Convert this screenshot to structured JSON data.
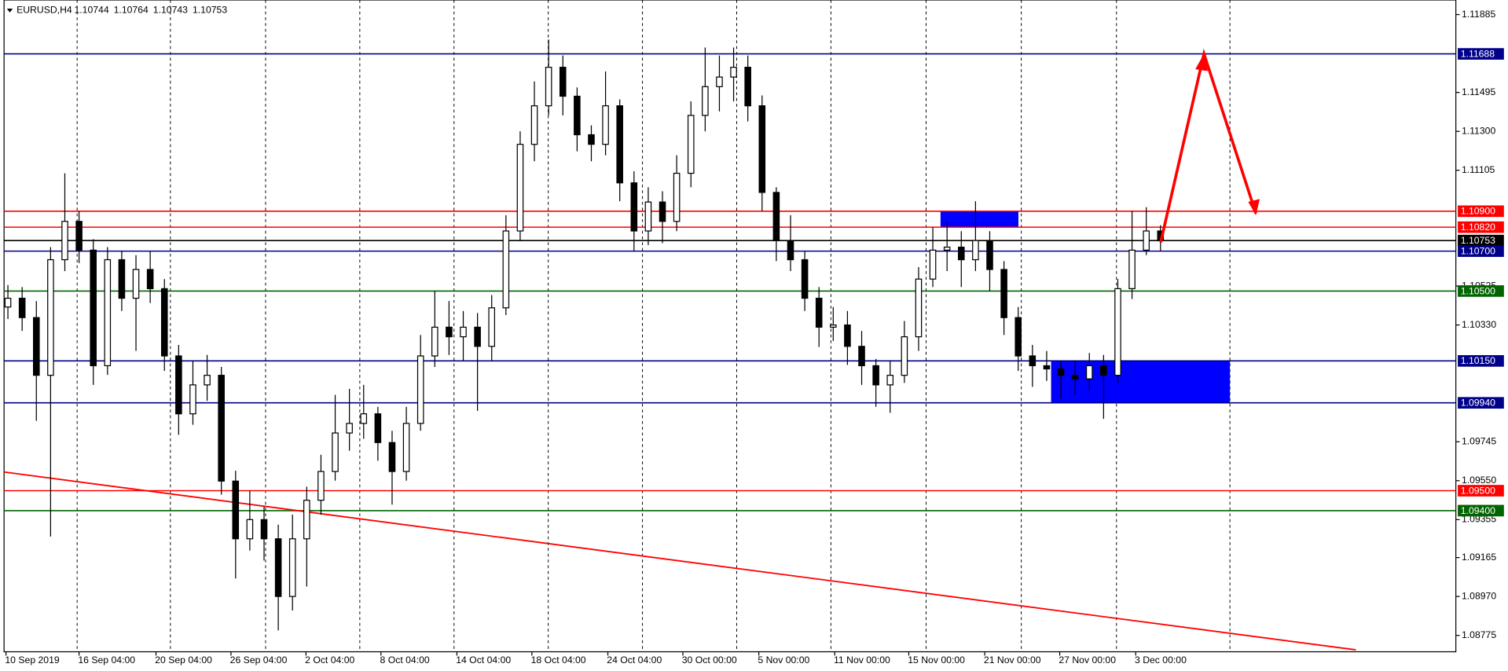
{
  "chart_data": {
    "type": "candlestick",
    "header": {
      "symbol": "EURUSD,H4",
      "open": 1.10744,
      "high": 1.10764,
      "low": 1.10743,
      "close": 1.10753
    },
    "ylim": [
      1.08693,
      1.11958
    ],
    "yticks": [
      {
        "value": 1.11885,
        "label": "1.11885"
      },
      {
        "value": 1.11495,
        "label": "1.11495"
      },
      {
        "value": 1.113,
        "label": "1.11300"
      },
      {
        "value": 1.11105,
        "label": "1.11105"
      },
      {
        "value": 1.10525,
        "label": "1.10525"
      },
      {
        "value": 1.1033,
        "label": "1.10330"
      },
      {
        "value": 1.09745,
        "label": "1.09745"
      },
      {
        "value": 1.0955,
        "label": "1.09550"
      },
      {
        "value": 1.09355,
        "label": "1.09355"
      },
      {
        "value": 1.09165,
        "label": "1.09165"
      },
      {
        "value": 1.0897,
        "label": "1.08970"
      },
      {
        "value": 1.08775,
        "label": "1.08775"
      }
    ],
    "categories": [
      "10 Sep 2019",
      "16 Sep 04:00",
      "20 Sep 04:00",
      "26 Sep 04:00",
      "2 Oct 04:00",
      "8 Oct 04:00",
      "14 Oct 04:00",
      "18 Oct 04:00",
      "24 Oct 04:00",
      "30 Oct 00:00",
      "5 Nov 00:00",
      "11 Nov 00:00",
      "15 Nov 00:00",
      "21 Nov 00:00",
      "27 Nov 00:00",
      "3 Dec 00:00"
    ],
    "levels": [
      {
        "value": 1.11688,
        "label": "1.11688",
        "color": "#00008b"
      },
      {
        "value": 1.109,
        "label": "1.10900",
        "color": "#ff0000"
      },
      {
        "value": 1.1082,
        "label": "1.10820",
        "color": "#ff0000"
      },
      {
        "value": 1.10753,
        "label": "1.10753",
        "color": "#000000"
      },
      {
        "value": 1.107,
        "label": "1.10700",
        "color": "#00008b"
      },
      {
        "value": 1.105,
        "label": "1.10500",
        "color": "#006400"
      },
      {
        "value": 1.1015,
        "label": "1.10150",
        "color": "#00008b"
      },
      {
        "value": 1.0994,
        "label": "1.09940",
        "color": "#00008b"
      },
      {
        "value": 1.095,
        "label": "1.09500",
        "color": "#ff0000"
      },
      {
        "value": 1.094,
        "label": "1.09400",
        "color": "#006400"
      }
    ],
    "zones": [
      {
        "top": 1.109,
        "bottom": 1.1082,
        "color": "#0000ff"
      },
      {
        "top": 1.1015,
        "bottom": 1.0994,
        "color": "#0000ff"
      }
    ],
    "color": "#000000",
    "open": [
      1.1042,
      1.10464,
      1.10367,
      1.10078,
      1.10657,
      1.10849,
      1.10705,
      1.10126,
      1.10657,
      1.10464,
      1.10608,
      1.10512,
      1.10175,
      1.09885,
      1.1003,
      1.10078,
      1.09548,
      1.09259,
      1.09355,
      1.09259,
      1.0897,
      1.09259,
      1.09452,
      1.09596,
      1.09789,
      1.09837,
      1.09885,
      1.09741,
      1.09596,
      1.09837,
      1.10175,
      1.10319,
      1.10271,
      1.10319,
      1.10223,
      1.10416,
      1.10801,
      1.11235,
      1.11428,
      1.11621,
      1.11476,
      1.11283,
      1.11235,
      1.11428,
      1.11042,
      1.10801,
      1.10946,
      1.10849,
      1.1109,
      1.1138,
      1.11524,
      1.11572,
      1.11621,
      1.11428,
      1.10994,
      1.10753,
      1.10657,
      1.10464,
      1.10319,
      1.1033,
      1.10223,
      1.10126,
      1.1003,
      1.10078,
      1.10271,
      1.1056,
      1.10705,
      1.1072,
      1.10657,
      1.10753,
      1.10608,
      1.10367,
      1.10175,
      1.10126,
      1.1011,
      1.10078,
      1.1006,
      1.10126,
      1.10078,
      1.10512,
      1.10705,
      1.10801
    ],
    "high": [
      1.1053,
      1.1052,
      1.1045,
      1.1072,
      1.1109,
      1.109,
      1.1076,
      1.1072,
      1.107,
      1.1068,
      1.107,
      1.1056,
      1.1023,
      1.1015,
      1.1018,
      1.1012,
      1.096,
      1.095,
      1.0942,
      1.0933,
      1.0938,
      1.0952,
      1.0968,
      1.0998,
      1.1001,
      1.1003,
      1.0992,
      1.098,
      1.0992,
      1.1028,
      1.105,
      1.1045,
      1.104,
      1.1039,
      1.1048,
      1.1088,
      1.113,
      1.1155,
      1.1176,
      1.1168,
      1.1152,
      1.1133,
      1.116,
      1.1146,
      1.111,
      1.1102,
      1.11,
      1.1118,
      1.1145,
      1.1172,
      1.1168,
      1.1172,
      1.1168,
      1.1148,
      1.1102,
      1.1088,
      1.107,
      1.1052,
      1.1042,
      1.104,
      1.103,
      1.1016,
      1.1015,
      1.1035,
      1.1062,
      1.1082,
      1.1085,
      1.108,
      1.1095,
      1.108,
      1.1065,
      1.1042,
      1.1023,
      1.102,
      1.1015,
      1.1015,
      1.1019,
      1.1018,
      1.1056,
      1.109,
      1.1092,
      1.1083
    ],
    "low": [
      1.1036,
      1.103,
      1.0985,
      1.0927,
      1.106,
      1.1064,
      1.1003,
      1.1008,
      1.104,
      1.102,
      1.1044,
      1.101,
      1.0978,
      1.0983,
      1.0995,
      1.0948,
      1.0906,
      1.092,
      1.0915,
      1.088,
      1.089,
      1.0902,
      1.0938,
      1.0955,
      1.097,
      1.0976,
      1.0965,
      1.0943,
      1.0955,
      1.098,
      1.1012,
      1.1018,
      1.1015,
      1.099,
      1.1015,
      1.1038,
      1.1075,
      1.1115,
      1.1138,
      1.1138,
      1.112,
      1.1115,
      1.1118,
      1.1095,
      1.107,
      1.1073,
      1.1074,
      1.108,
      1.1102,
      1.113,
      1.114,
      1.1145,
      1.1135,
      1.109,
      1.1065,
      1.106,
      1.104,
      1.1022,
      1.1025,
      1.1013,
      1.1003,
      1.0992,
      1.0989,
      1.1004,
      1.102,
      1.1052,
      1.106,
      1.1052,
      1.106,
      1.105,
      1.1028,
      1.101,
      1.1002,
      1.1005,
      1.0996,
      1.0998,
      1.1,
      1.0986,
      1.1004,
      1.1046,
      1.1068,
      1.107
    ],
    "close": [
      1.10464,
      1.10367,
      1.10078,
      1.10657,
      1.10849,
      1.10705,
      1.10126,
      1.10657,
      1.10464,
      1.10608,
      1.10512,
      1.10175,
      1.09885,
      1.1003,
      1.10078,
      1.09548,
      1.09259,
      1.09355,
      1.09259,
      1.0897,
      1.09259,
      1.09452,
      1.09596,
      1.09789,
      1.09837,
      1.09885,
      1.09741,
      1.09596,
      1.09837,
      1.10175,
      1.10319,
      1.10271,
      1.10319,
      1.10223,
      1.10416,
      1.10801,
      1.11235,
      1.11428,
      1.11621,
      1.11476,
      1.11283,
      1.11235,
      1.11428,
      1.11042,
      1.10801,
      1.10946,
      1.10849,
      1.1109,
      1.1138,
      1.11524,
      1.11572,
      1.11621,
      1.11428,
      1.10994,
      1.10753,
      1.10657,
      1.10464,
      1.10319,
      1.1033,
      1.10223,
      1.10126,
      1.1003,
      1.10078,
      1.10271,
      1.1056,
      1.10705,
      1.1072,
      1.10657,
      1.10753,
      1.10608,
      1.10367,
      1.10175,
      1.10126,
      1.1011,
      1.10078,
      1.1006,
      1.10126,
      1.10078,
      1.10512,
      1.10705,
      1.10801,
      1.10753
    ]
  }
}
